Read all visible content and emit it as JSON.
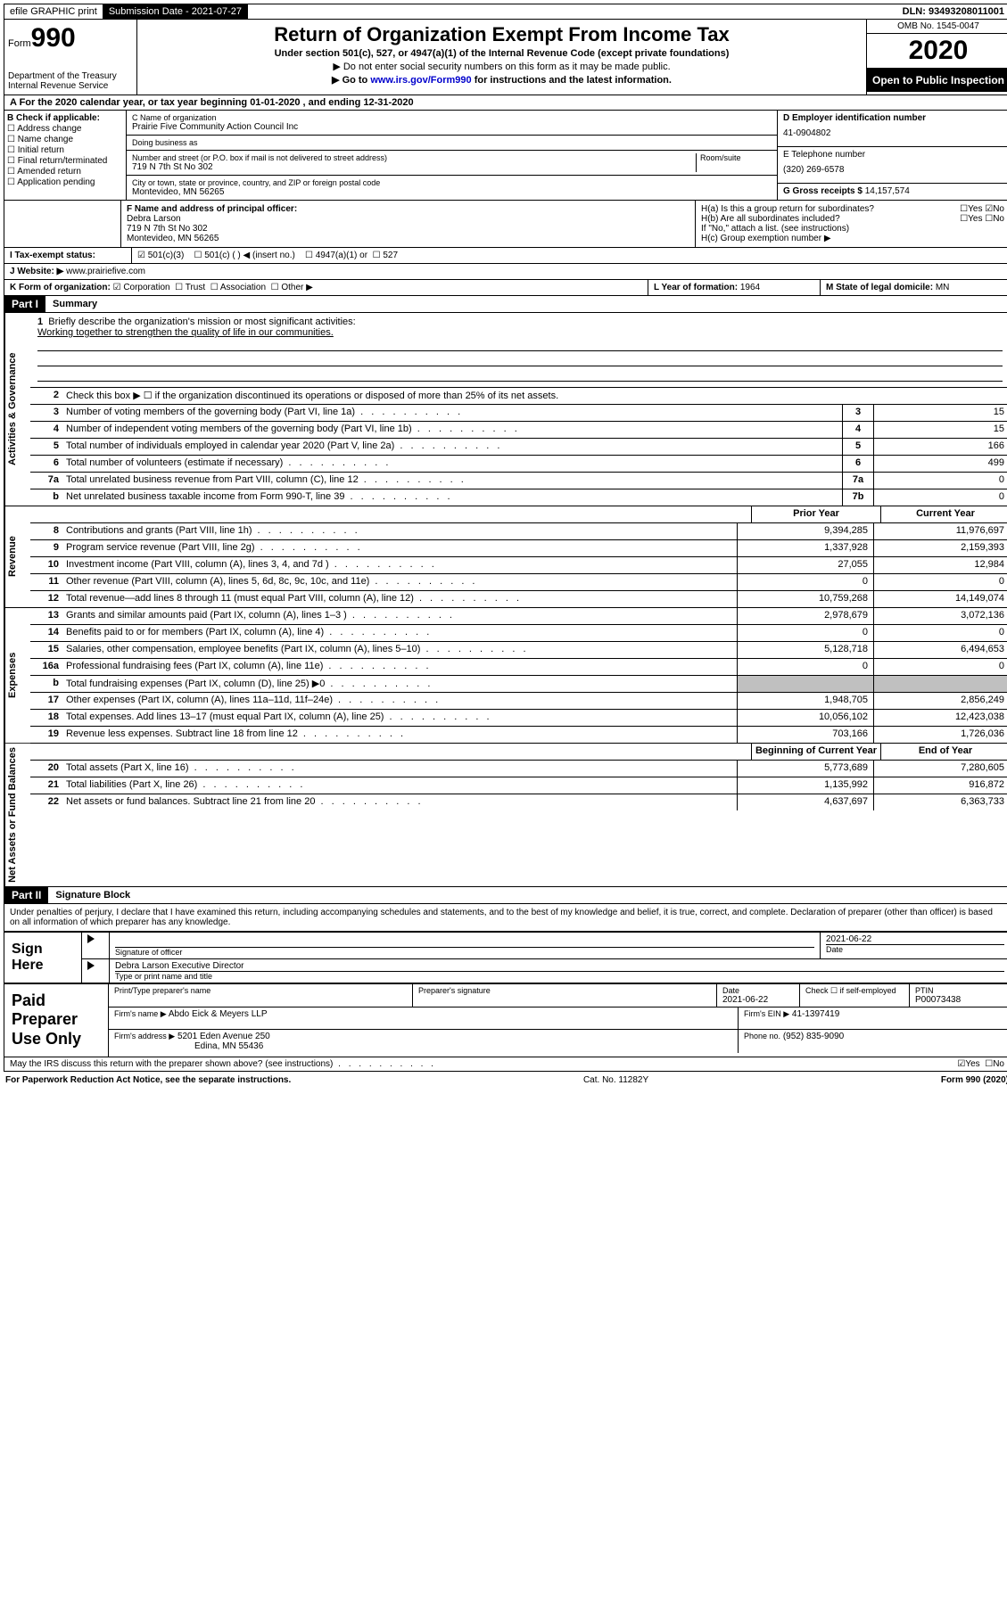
{
  "topbar": {
    "efile": "efile GRAPHIC print",
    "submission_label": "Submission Date - 2021-07-27",
    "dln": "DLN: 93493208011001"
  },
  "header": {
    "form_prefix": "Form",
    "form_number": "990",
    "dept": "Department of the Treasury",
    "irs": "Internal Revenue Service",
    "title": "Return of Organization Exempt From Income Tax",
    "subtitle": "Under section 501(c), 527, or 4947(a)(1) of the Internal Revenue Code (except private foundations)",
    "note1": "▶ Do not enter social security numbers on this form as it may be made public.",
    "note2_pre": "▶ Go to ",
    "note2_link": "www.irs.gov/Form990",
    "note2_post": " for instructions and the latest information.",
    "omb": "OMB No. 1545-0047",
    "year": "2020",
    "open": "Open to Public Inspection"
  },
  "row_a": "A For the 2020 calendar year, or tax year beginning 01-01-2020    , and ending 12-31-2020",
  "section_b": {
    "title": "B Check if applicable:",
    "items": [
      "Address change",
      "Name change",
      "Initial return",
      "Final return/terminated",
      "Amended return",
      "Application pending"
    ]
  },
  "section_c": {
    "name_label": "C Name of organization",
    "name": "Prairie Five Community Action Council Inc",
    "dba_label": "Doing business as",
    "dba": "",
    "addr_label": "Number and street (or P.O. box if mail is not delivered to street address)",
    "room_label": "Room/suite",
    "addr": "719 N 7th St No 302",
    "city_label": "City or town, state or province, country, and ZIP or foreign postal code",
    "city": "Montevideo, MN  56265"
  },
  "section_d": {
    "label": "D Employer identification number",
    "value": "41-0904802"
  },
  "section_e": {
    "label": "E Telephone number",
    "value": "(320) 269-6578"
  },
  "section_g": {
    "label": "G Gross receipts $",
    "value": "14,157,574"
  },
  "section_f": {
    "label": "F  Name and address of principal officer:",
    "name": "Debra Larson",
    "addr1": "719 N 7th St No 302",
    "addr2": "Montevideo, MN  56265"
  },
  "section_h": {
    "ha": "H(a)  Is this a group return for subordinates?",
    "ha_yes": "Yes",
    "ha_no": "No",
    "hb": "H(b)  Are all subordinates included?",
    "hb_note": "If \"No,\" attach a list. (see instructions)",
    "hc": "H(c)  Group exemption number ▶"
  },
  "section_i": {
    "label": "I  Tax-exempt status:",
    "opt1": "501(c)(3)",
    "opt2": "501(c) (  ) ◀ (insert no.)",
    "opt3": "4947(a)(1) or",
    "opt4": "527"
  },
  "section_j": {
    "label": "J  Website: ▶",
    "value": "www.prairiefive.com"
  },
  "section_k": {
    "label": "K Form of organization:",
    "opts": [
      "Corporation",
      "Trust",
      "Association",
      "Other ▶"
    ],
    "l_label": "L Year of formation:",
    "l_value": "1964",
    "m_label": "M State of legal domicile:",
    "m_value": "MN"
  },
  "part1": {
    "header": "Part I",
    "title": "Summary"
  },
  "summary": {
    "vtabs": [
      "Activities & Governance",
      "Revenue",
      "Expenses",
      "Net Assets or Fund Balances"
    ],
    "line1_label": "Briefly describe the organization's mission or most significant activities:",
    "line1_text": "Working together to strengthen the quality of life in our communities.",
    "line2": "Check this box ▶ ☐  if the organization discontinued its operations or disposed of more than 25% of its net assets.",
    "gov_lines": [
      {
        "n": "3",
        "d": "Number of voting members of the governing body (Part VI, line 1a)",
        "box": "3",
        "v": "15"
      },
      {
        "n": "4",
        "d": "Number of independent voting members of the governing body (Part VI, line 1b)",
        "box": "4",
        "v": "15"
      },
      {
        "n": "5",
        "d": "Total number of individuals employed in calendar year 2020 (Part V, line 2a)",
        "box": "5",
        "v": "166"
      },
      {
        "n": "6",
        "d": "Total number of volunteers (estimate if necessary)",
        "box": "6",
        "v": "499"
      },
      {
        "n": "7a",
        "d": "Total unrelated business revenue from Part VIII, column (C), line 12",
        "box": "7a",
        "v": "0"
      },
      {
        "n": "b",
        "d": "Net unrelated business taxable income from Form 990-T, line 39",
        "box": "7b",
        "v": "0"
      }
    ],
    "col_headers": {
      "prior": "Prior Year",
      "current": "Current Year"
    },
    "rev_lines": [
      {
        "n": "8",
        "d": "Contributions and grants (Part VIII, line 1h)",
        "p": "9,394,285",
        "c": "11,976,697"
      },
      {
        "n": "9",
        "d": "Program service revenue (Part VIII, line 2g)",
        "p": "1,337,928",
        "c": "2,159,393"
      },
      {
        "n": "10",
        "d": "Investment income (Part VIII, column (A), lines 3, 4, and 7d )",
        "p": "27,055",
        "c": "12,984"
      },
      {
        "n": "11",
        "d": "Other revenue (Part VIII, column (A), lines 5, 6d, 8c, 9c, 10c, and 11e)",
        "p": "0",
        "c": "0"
      },
      {
        "n": "12",
        "d": "Total revenue—add lines 8 through 11 (must equal Part VIII, column (A), line 12)",
        "p": "10,759,268",
        "c": "14,149,074"
      }
    ],
    "exp_lines": [
      {
        "n": "13",
        "d": "Grants and similar amounts paid (Part IX, column (A), lines 1–3 )",
        "p": "2,978,679",
        "c": "3,072,136"
      },
      {
        "n": "14",
        "d": "Benefits paid to or for members (Part IX, column (A), line 4)",
        "p": "0",
        "c": "0"
      },
      {
        "n": "15",
        "d": "Salaries, other compensation, employee benefits (Part IX, column (A), lines 5–10)",
        "p": "5,128,718",
        "c": "6,494,653"
      },
      {
        "n": "16a",
        "d": "Professional fundraising fees (Part IX, column (A), line 11e)",
        "p": "0",
        "c": "0"
      },
      {
        "n": "b",
        "d": "Total fundraising expenses (Part IX, column (D), line 25) ▶0",
        "p": "",
        "c": "",
        "shaded": true
      },
      {
        "n": "17",
        "d": "Other expenses (Part IX, column (A), lines 11a–11d, 11f–24e)",
        "p": "1,948,705",
        "c": "2,856,249"
      },
      {
        "n": "18",
        "d": "Total expenses. Add lines 13–17 (must equal Part IX, column (A), line 25)",
        "p": "10,056,102",
        "c": "12,423,038"
      },
      {
        "n": "19",
        "d": "Revenue less expenses. Subtract line 18 from line 12",
        "p": "703,166",
        "c": "1,726,036"
      }
    ],
    "net_headers": {
      "prior": "Beginning of Current Year",
      "current": "End of Year"
    },
    "net_lines": [
      {
        "n": "20",
        "d": "Total assets (Part X, line 16)",
        "p": "5,773,689",
        "c": "7,280,605"
      },
      {
        "n": "21",
        "d": "Total liabilities (Part X, line 26)",
        "p": "1,135,992",
        "c": "916,872"
      },
      {
        "n": "22",
        "d": "Net assets or fund balances. Subtract line 21 from line 20",
        "p": "4,637,697",
        "c": "6,363,733"
      }
    ]
  },
  "part2": {
    "header": "Part II",
    "title": "Signature Block",
    "perjury": "Under penalties of perjury, I declare that I have examined this return, including accompanying schedules and statements, and to the best of my knowledge and belief, it is true, correct, and complete. Declaration of preparer (other than officer) is based on all information of which preparer has any knowledge."
  },
  "sign": {
    "label": "Sign Here",
    "sig_officer": "Signature of officer",
    "date": "2021-06-22",
    "date_label": "Date",
    "name_title": "Debra Larson  Executive Director",
    "name_label": "Type or print name and title"
  },
  "paid": {
    "label": "Paid Preparer Use Only",
    "h1": "Print/Type preparer's name",
    "h2": "Preparer's signature",
    "h3": "Date",
    "h3v": "2021-06-22",
    "h4": "Check ☐ if self-employed",
    "h5": "PTIN",
    "h5v": "P00073438",
    "firm_name_label": "Firm's name    ▶",
    "firm_name": "Abdo Eick & Meyers LLP",
    "firm_ein_label": "Firm's EIN ▶",
    "firm_ein": "41-1397419",
    "firm_addr_label": "Firm's address ▶",
    "firm_addr": "5201 Eden Avenue 250",
    "firm_city": "Edina, MN  55436",
    "phone_label": "Phone no.",
    "phone": "(952) 835-9090"
  },
  "footer": {
    "discuss": "May the IRS discuss this return with the preparer shown above? (see instructions)",
    "yes": "Yes",
    "no": "No"
  },
  "bottom": {
    "left": "For Paperwork Reduction Act Notice, see the separate instructions.",
    "mid": "Cat. No. 11282Y",
    "right": "Form 990 (2020)"
  }
}
